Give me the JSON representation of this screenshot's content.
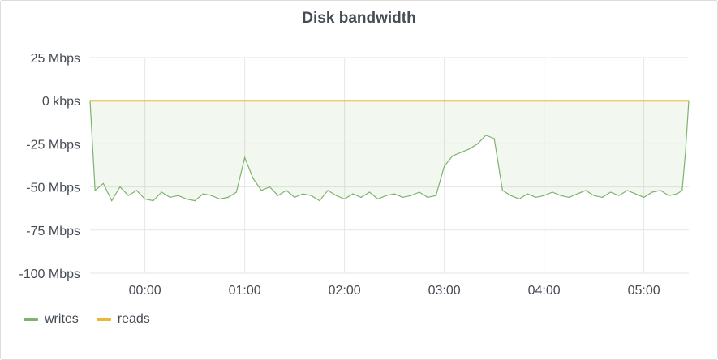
{
  "panel": {
    "title": "Disk bandwidth"
  },
  "chart_data": {
    "type": "line",
    "title": "Disk bandwidth",
    "ylabel": "",
    "xlabel": "",
    "y_unit": "Mbps",
    "ylim": [
      -100,
      25
    ],
    "xlim": [
      "23:27",
      "05:27"
    ],
    "y_ticks": [
      {
        "value": 25,
        "label": "25 Mbps"
      },
      {
        "value": 0,
        "label": "0 kbps"
      },
      {
        "value": -25,
        "label": "-25 Mbps"
      },
      {
        "value": -50,
        "label": "-50 Mbps"
      },
      {
        "value": -75,
        "label": "-75 Mbps"
      },
      {
        "value": -100,
        "label": "-100 Mbps"
      }
    ],
    "x_ticks": [
      "00:00",
      "01:00",
      "02:00",
      "03:00",
      "04:00",
      "05:00"
    ],
    "grid": true,
    "legend_position": "bottom-left",
    "series": [
      {
        "name": "writes",
        "color": "#7eb26d",
        "fill": true,
        "x": [
          "23:27",
          "23:30",
          "23:35",
          "23:40",
          "23:45",
          "23:50",
          "23:55",
          "00:00",
          "00:05",
          "00:10",
          "00:15",
          "00:20",
          "00:25",
          "00:30",
          "00:35",
          "00:40",
          "00:45",
          "00:50",
          "00:55",
          "01:00",
          "01:05",
          "01:10",
          "01:15",
          "01:20",
          "01:25",
          "01:30",
          "01:35",
          "01:40",
          "01:45",
          "01:50",
          "01:55",
          "02:00",
          "02:05",
          "02:10",
          "02:15",
          "02:20",
          "02:25",
          "02:30",
          "02:35",
          "02:40",
          "02:45",
          "02:50",
          "02:55",
          "03:00",
          "03:05",
          "03:10",
          "03:15",
          "03:20",
          "03:25",
          "03:30",
          "03:35",
          "03:40",
          "03:45",
          "03:50",
          "03:55",
          "04:00",
          "04:05",
          "04:10",
          "04:15",
          "04:20",
          "04:25",
          "04:30",
          "04:35",
          "04:40",
          "04:45",
          "04:50",
          "04:55",
          "05:00",
          "05:05",
          "05:10",
          "05:15",
          "05:20",
          "05:23",
          "05:25",
          "05:27"
        ],
        "values": [
          0,
          -52,
          -48,
          -58,
          -50,
          -55,
          -52,
          -57,
          -58,
          -53,
          -56,
          -55,
          -57,
          -58,
          -54,
          -55,
          -57,
          -56,
          -53,
          -33,
          -45,
          -52,
          -50,
          -55,
          -52,
          -56,
          -54,
          -55,
          -58,
          -52,
          -55,
          -57,
          -54,
          -56,
          -53,
          -57,
          -55,
          -54,
          -56,
          -55,
          -53,
          -56,
          -55,
          -38,
          -32,
          -30,
          -28,
          -25,
          -20,
          -22,
          -52,
          -55,
          -57,
          -54,
          -56,
          -55,
          -53,
          -55,
          -56,
          -54,
          -52,
          -55,
          -56,
          -53,
          -55,
          -52,
          -54,
          -56,
          -53,
          -52,
          -55,
          -54,
          -52,
          -30,
          0
        ]
      },
      {
        "name": "reads",
        "color": "#eab839",
        "fill": false,
        "x": [
          "23:27",
          "05:27"
        ],
        "values": [
          0,
          0
        ]
      }
    ]
  },
  "legend": {
    "items": [
      {
        "label": "writes",
        "color": "#7eb26d"
      },
      {
        "label": "reads",
        "color": "#eab839"
      }
    ]
  }
}
